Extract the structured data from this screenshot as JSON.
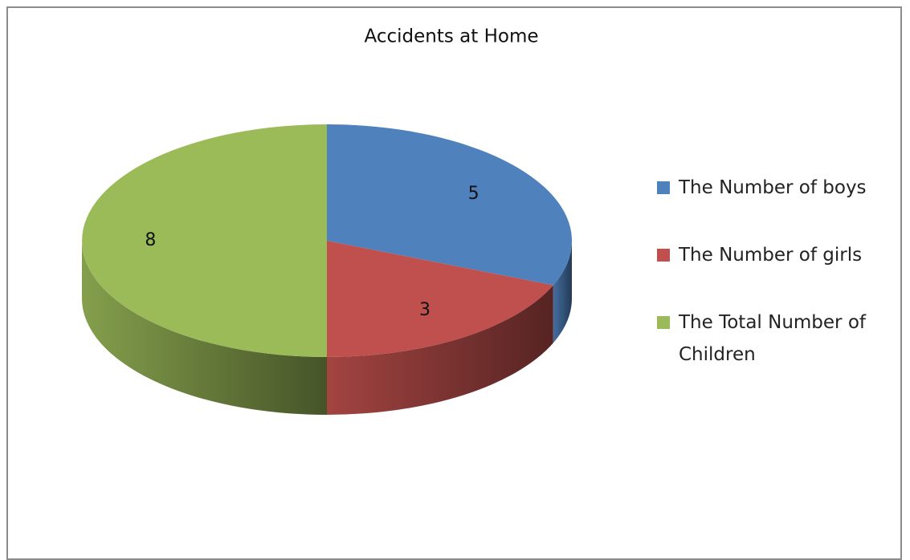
{
  "chart_data": {
    "type": "pie3d",
    "title": "Accidents at Home",
    "categories": [
      "The Number of boys",
      "The Number of girls",
      "The Total Number of Children"
    ],
    "values": [
      5,
      3,
      8
    ],
    "colors": [
      "#4f81bd",
      "#c0504d",
      "#9bbb59"
    ],
    "legend": "right"
  }
}
